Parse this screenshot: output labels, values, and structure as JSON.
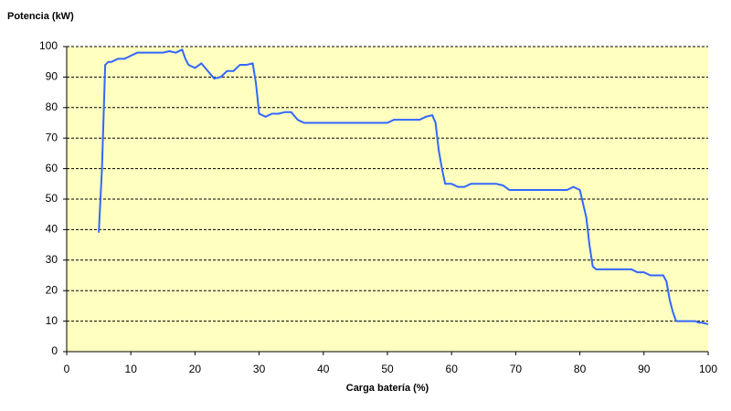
{
  "chart_data": {
    "type": "line",
    "ylabel": "Potencia (kW)",
    "xlabel": "Carga batería (%)",
    "x": [
      5,
      5.5,
      6,
      6.5,
      7,
      8,
      9,
      10,
      11,
      12,
      13,
      14,
      15,
      16,
      17,
      18,
      18.5,
      19,
      20,
      21,
      22,
      23,
      24,
      25,
      26,
      27,
      28,
      29,
      29.5,
      30,
      31,
      32,
      33,
      34,
      35,
      36,
      37,
      38,
      40,
      45,
      50,
      51,
      55,
      56,
      57,
      57.5,
      58,
      58.5,
      59,
      60,
      61,
      62,
      63,
      64,
      66,
      67,
      68,
      69,
      70,
      75,
      78,
      79,
      80,
      81,
      81.5,
      82,
      82.5,
      83,
      85,
      88,
      89,
      90,
      91,
      93,
      93.5,
      94,
      94.5,
      95,
      96,
      97,
      98,
      98.5,
      99,
      100
    ],
    "series": [
      {
        "name": "Potencia",
        "color": "#3366ff",
        "values": [
          39,
          60,
          94,
          95,
          95,
          96,
          96,
          97,
          98,
          98,
          98,
          98,
          98,
          98.5,
          98,
          99,
          96,
          94,
          93,
          94.5,
          92,
          89.5,
          90,
          92,
          92,
          94,
          94,
          94.5,
          88,
          78,
          77,
          78,
          78,
          78.5,
          78.5,
          76,
          75,
          75,
          75,
          75,
          75,
          76,
          76,
          77,
          77.5,
          75,
          66,
          60,
          55,
          55,
          54,
          54,
          55,
          55,
          55,
          55,
          54.5,
          53,
          53,
          53,
          53,
          54,
          53,
          44,
          35,
          28,
          27,
          27,
          27,
          27,
          26,
          26,
          25,
          25,
          23,
          17,
          13,
          10,
          10,
          10,
          10,
          9.5,
          9.5,
          9
        ]
      }
    ],
    "xlim": [
      0,
      100
    ],
    "xticks": [
      0,
      10,
      20,
      30,
      40,
      50,
      60,
      70,
      80,
      90,
      100
    ],
    "ylim": [
      0,
      100
    ],
    "yticks": [
      0,
      10,
      20,
      30,
      40,
      50,
      60,
      70,
      80,
      90,
      100
    ],
    "grid": true,
    "background": "#ffffc0"
  }
}
